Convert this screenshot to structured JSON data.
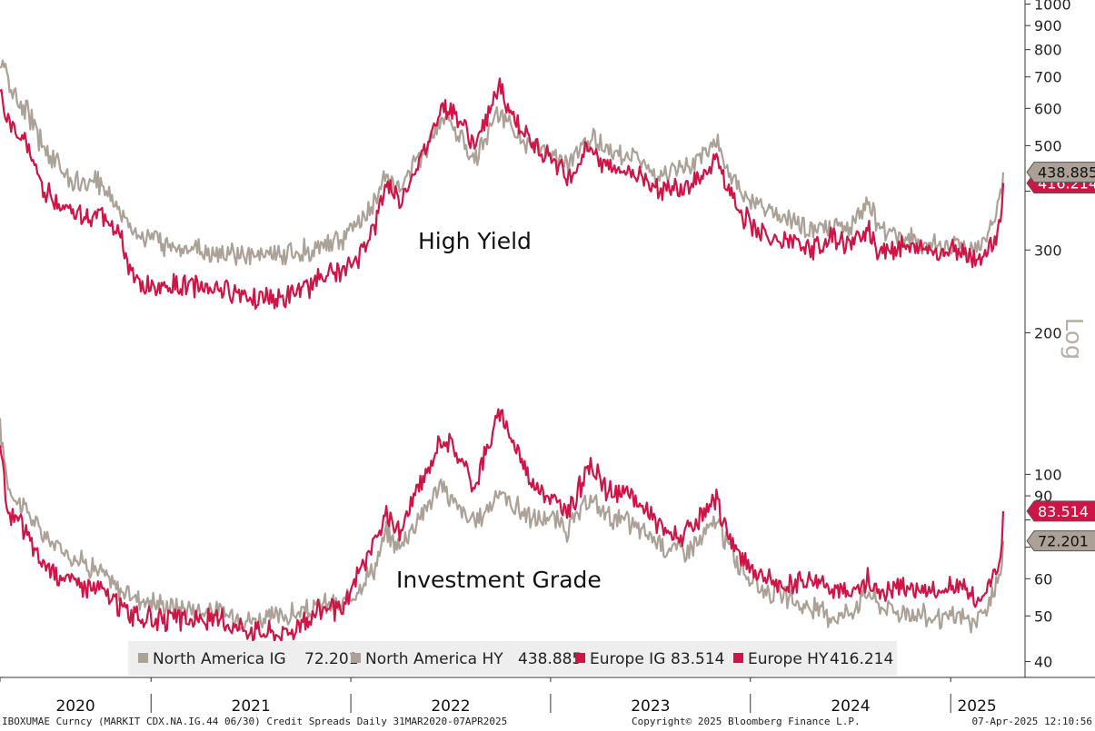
{
  "chart_data": {
    "type": "line",
    "y_scale": "log",
    "scale_label": "Log",
    "ylim": [
      37,
      1020
    ],
    "yticks": [
      40,
      50,
      60,
      70,
      80,
      90,
      100,
      200,
      300,
      400,
      500,
      600,
      700,
      800,
      900,
      1000
    ],
    "ytick_labels": [
      "40",
      "50",
      "60",
      "",
      "",
      "90",
      "100",
      "200",
      "300",
      "",
      "500",
      "600",
      "700",
      "800",
      "900",
      "1000"
    ],
    "x_start": "2020-03-31",
    "x_end": "2025-04-07",
    "year_labels": [
      {
        "label": "2020",
        "start": "2020-03-31",
        "end": "2021-01-01"
      },
      {
        "label": "2021",
        "start": "2021-01-01",
        "end": "2022-01-01"
      },
      {
        "label": "2022",
        "start": "2022-01-01",
        "end": "2023-01-01"
      },
      {
        "label": "2023",
        "start": "2023-01-01",
        "end": "2024-01-01"
      },
      {
        "label": "2024",
        "start": "2024-01-01",
        "end": "2025-01-01"
      },
      {
        "label": "2025",
        "start": "2025-01-01",
        "end": "2025-04-07"
      }
    ],
    "annotations": [
      "High Yield",
      "Investment Grade"
    ],
    "legend_position": "bottom-center",
    "series": [
      {
        "name": "North America IG",
        "last": "72.201",
        "color": "#aba197",
        "points": [
          [
            "2020-03-31",
            125
          ],
          [
            "2020-04-15",
            95
          ],
          [
            "2020-05-01",
            88
          ],
          [
            "2020-05-20",
            84
          ],
          [
            "2020-06-10",
            76
          ],
          [
            "2020-07-01",
            72
          ],
          [
            "2020-08-01",
            68
          ],
          [
            "2020-09-01",
            65
          ],
          [
            "2020-10-01",
            62
          ],
          [
            "2020-11-01",
            57
          ],
          [
            "2020-12-01",
            55
          ],
          [
            "2021-01-15",
            53
          ],
          [
            "2021-03-01",
            52
          ],
          [
            "2021-05-01",
            51
          ],
          [
            "2021-07-01",
            49
          ],
          [
            "2021-09-01",
            50
          ],
          [
            "2021-10-15",
            51
          ],
          [
            "2021-11-15",
            53
          ],
          [
            "2021-12-15",
            52
          ],
          [
            "2022-01-15",
            58
          ],
          [
            "2022-02-15",
            64
          ],
          [
            "2022-03-07",
            75
          ],
          [
            "2022-03-31",
            70
          ],
          [
            "2022-05-01",
            80
          ],
          [
            "2022-05-20",
            86
          ],
          [
            "2022-06-15",
            95
          ],
          [
            "2022-07-05",
            88
          ],
          [
            "2022-08-15",
            78
          ],
          [
            "2022-09-30",
            92
          ],
          [
            "2022-10-15",
            88
          ],
          [
            "2022-11-30",
            80
          ],
          [
            "2022-12-31",
            81
          ],
          [
            "2023-01-31",
            76
          ],
          [
            "2023-03-15",
            88
          ],
          [
            "2023-04-15",
            82
          ],
          [
            "2023-05-31",
            78
          ],
          [
            "2023-07-01",
            74
          ],
          [
            "2023-08-01",
            70
          ],
          [
            "2023-09-01",
            69
          ],
          [
            "2023-10-01",
            72
          ],
          [
            "2023-10-31",
            80
          ],
          [
            "2023-11-15",
            73
          ],
          [
            "2023-12-15",
            63
          ],
          [
            "2024-01-15",
            58
          ],
          [
            "2024-03-01",
            55
          ],
          [
            "2024-04-15",
            52
          ],
          [
            "2024-06-01",
            50
          ],
          [
            "2024-07-01",
            51
          ],
          [
            "2024-08-05",
            57
          ],
          [
            "2024-08-20",
            53
          ],
          [
            "2024-10-01",
            51
          ],
          [
            "2024-11-15",
            50
          ],
          [
            "2024-12-15",
            49
          ],
          [
            "2025-01-15",
            50
          ],
          [
            "2025-02-15",
            48
          ],
          [
            "2025-03-10",
            52
          ],
          [
            "2025-03-25",
            58
          ],
          [
            "2025-04-02",
            63
          ],
          [
            "2025-04-07",
            72.2
          ]
        ]
      },
      {
        "name": "North America HY",
        "last": "438.885",
        "color": "#aba197",
        "points": [
          [
            "2020-03-31",
            760
          ],
          [
            "2020-04-15",
            690
          ],
          [
            "2020-05-01",
            620
          ],
          [
            "2020-05-20",
            590
          ],
          [
            "2020-06-10",
            520
          ],
          [
            "2020-07-01",
            480
          ],
          [
            "2020-08-01",
            430
          ],
          [
            "2020-09-01",
            410
          ],
          [
            "2020-10-01",
            420
          ],
          [
            "2020-11-01",
            370
          ],
          [
            "2020-12-01",
            330
          ],
          [
            "2021-01-15",
            310
          ],
          [
            "2021-03-01",
            305
          ],
          [
            "2021-05-01",
            295
          ],
          [
            "2021-07-01",
            290
          ],
          [
            "2021-09-01",
            295
          ],
          [
            "2021-10-15",
            300
          ],
          [
            "2021-11-15",
            310
          ],
          [
            "2021-12-15",
            315
          ],
          [
            "2022-01-15",
            340
          ],
          [
            "2022-02-15",
            380
          ],
          [
            "2022-03-07",
            440
          ],
          [
            "2022-03-31",
            400
          ],
          [
            "2022-05-01",
            460
          ],
          [
            "2022-05-20",
            500
          ],
          [
            "2022-06-15",
            580
          ],
          [
            "2022-07-05",
            560
          ],
          [
            "2022-08-15",
            470
          ],
          [
            "2022-09-30",
            590
          ],
          [
            "2022-10-15",
            560
          ],
          [
            "2022-11-30",
            490
          ],
          [
            "2022-12-31",
            480
          ],
          [
            "2023-01-31",
            450
          ],
          [
            "2023-03-15",
            520
          ],
          [
            "2023-04-15",
            490
          ],
          [
            "2023-05-31",
            480
          ],
          [
            "2023-07-01",
            440
          ],
          [
            "2023-08-01",
            430
          ],
          [
            "2023-09-01",
            440
          ],
          [
            "2023-10-01",
            470
          ],
          [
            "2023-10-31",
            520
          ],
          [
            "2023-11-15",
            460
          ],
          [
            "2023-12-15",
            390
          ],
          [
            "2024-01-15",
            370
          ],
          [
            "2024-03-01",
            350
          ],
          [
            "2024-04-15",
            330
          ],
          [
            "2024-06-01",
            335
          ],
          [
            "2024-07-01",
            330
          ],
          [
            "2024-08-05",
            380
          ],
          [
            "2024-08-20",
            340
          ],
          [
            "2024-10-01",
            320
          ],
          [
            "2024-11-15",
            310
          ],
          [
            "2024-12-15",
            305
          ],
          [
            "2025-01-15",
            310
          ],
          [
            "2025-02-15",
            295
          ],
          [
            "2025-03-10",
            325
          ],
          [
            "2025-03-25",
            350
          ],
          [
            "2025-04-02",
            390
          ],
          [
            "2025-04-07",
            438.9
          ]
        ]
      },
      {
        "name": "Europe IG",
        "last": "83.514",
        "color": "#cf1446",
        "points": [
          [
            "2020-03-31",
            115
          ],
          [
            "2020-04-15",
            82
          ],
          [
            "2020-05-01",
            80
          ],
          [
            "2020-05-20",
            75
          ],
          [
            "2020-06-10",
            66
          ],
          [
            "2020-07-01",
            63
          ],
          [
            "2020-08-01",
            60
          ],
          [
            "2020-09-01",
            58
          ],
          [
            "2020-10-01",
            57
          ],
          [
            "2020-11-01",
            53
          ],
          [
            "2020-12-01",
            50
          ],
          [
            "2021-01-15",
            49
          ],
          [
            "2021-03-01",
            49
          ],
          [
            "2021-05-01",
            49
          ],
          [
            "2021-07-01",
            47
          ],
          [
            "2021-09-01",
            46
          ],
          [
            "2021-10-15",
            49
          ],
          [
            "2021-11-15",
            53
          ],
          [
            "2021-12-15",
            50
          ],
          [
            "2022-01-15",
            62
          ],
          [
            "2022-02-15",
            72
          ],
          [
            "2022-03-07",
            82
          ],
          [
            "2022-03-31",
            75
          ],
          [
            "2022-05-01",
            92
          ],
          [
            "2022-05-20",
            100
          ],
          [
            "2022-06-15",
            120
          ],
          [
            "2022-07-05",
            115
          ],
          [
            "2022-08-15",
            95
          ],
          [
            "2022-09-30",
            135
          ],
          [
            "2022-10-15",
            125
          ],
          [
            "2022-11-30",
            95
          ],
          [
            "2022-12-31",
            90
          ],
          [
            "2023-01-31",
            82
          ],
          [
            "2023-03-15",
            105
          ],
          [
            "2023-04-15",
            92
          ],
          [
            "2023-05-31",
            90
          ],
          [
            "2023-07-01",
            82
          ],
          [
            "2023-08-01",
            75
          ],
          [
            "2023-09-01",
            74
          ],
          [
            "2023-10-01",
            80
          ],
          [
            "2023-10-31",
            88
          ],
          [
            "2023-11-15",
            78
          ],
          [
            "2023-12-15",
            66
          ],
          [
            "2024-01-15",
            62
          ],
          [
            "2024-03-01",
            57
          ],
          [
            "2024-04-15",
            60
          ],
          [
            "2024-06-01",
            58
          ],
          [
            "2024-07-01",
            55
          ],
          [
            "2024-08-05",
            60
          ],
          [
            "2024-08-20",
            56
          ],
          [
            "2024-10-01",
            58
          ],
          [
            "2024-11-15",
            57
          ],
          [
            "2024-12-15",
            56
          ],
          [
            "2025-01-15",
            58
          ],
          [
            "2025-02-15",
            54
          ],
          [
            "2025-03-10",
            58
          ],
          [
            "2025-03-25",
            62
          ],
          [
            "2025-04-02",
            66
          ],
          [
            "2025-04-07",
            83.5
          ]
        ]
      },
      {
        "name": "Europe HY",
        "last": "416.214",
        "color": "#cf1446",
        "points": [
          [
            "2020-03-31",
            650
          ],
          [
            "2020-04-15",
            560
          ],
          [
            "2020-05-01",
            530
          ],
          [
            "2020-05-20",
            500
          ],
          [
            "2020-06-10",
            420
          ],
          [
            "2020-07-01",
            390
          ],
          [
            "2020-08-01",
            370
          ],
          [
            "2020-09-01",
            350
          ],
          [
            "2020-10-01",
            360
          ],
          [
            "2020-11-01",
            330
          ],
          [
            "2020-12-01",
            255
          ],
          [
            "2021-01-15",
            250
          ],
          [
            "2021-03-01",
            252
          ],
          [
            "2021-05-01",
            250
          ],
          [
            "2021-07-01",
            240
          ],
          [
            "2021-09-01",
            235
          ],
          [
            "2021-10-15",
            250
          ],
          [
            "2021-11-15",
            270
          ],
          [
            "2021-12-15",
            265
          ],
          [
            "2022-01-15",
            290
          ],
          [
            "2022-02-15",
            340
          ],
          [
            "2022-03-07",
            420
          ],
          [
            "2022-03-31",
            380
          ],
          [
            "2022-05-01",
            450
          ],
          [
            "2022-05-20",
            500
          ],
          [
            "2022-06-15",
            610
          ],
          [
            "2022-07-05",
            600
          ],
          [
            "2022-08-15",
            500
          ],
          [
            "2022-09-30",
            660
          ],
          [
            "2022-10-15",
            600
          ],
          [
            "2022-11-30",
            500
          ],
          [
            "2022-12-31",
            480
          ],
          [
            "2023-01-31",
            420
          ],
          [
            "2023-03-15",
            500
          ],
          [
            "2023-04-15",
            450
          ],
          [
            "2023-05-31",
            440
          ],
          [
            "2023-07-01",
            420
          ],
          [
            "2023-08-01",
            400
          ],
          [
            "2023-09-01",
            410
          ],
          [
            "2023-10-01",
            430
          ],
          [
            "2023-10-31",
            470
          ],
          [
            "2023-11-15",
            420
          ],
          [
            "2023-12-15",
            360
          ],
          [
            "2024-01-15",
            330
          ],
          [
            "2024-03-01",
            310
          ],
          [
            "2024-04-15",
            300
          ],
          [
            "2024-06-01",
            320
          ],
          [
            "2024-07-01",
            305
          ],
          [
            "2024-08-05",
            335
          ],
          [
            "2024-08-20",
            300
          ],
          [
            "2024-10-01",
            305
          ],
          [
            "2024-11-15",
            300
          ],
          [
            "2024-12-15",
            295
          ],
          [
            "2025-01-15",
            300
          ],
          [
            "2025-02-15",
            285
          ],
          [
            "2025-03-10",
            300
          ],
          [
            "2025-03-25",
            320
          ],
          [
            "2025-04-02",
            350
          ],
          [
            "2025-04-07",
            416.2
          ]
        ]
      }
    ]
  },
  "legend_colors": {
    "na_ig": "#aba197",
    "na_hy": "#aba197",
    "eu_ig": "#cf1446",
    "eu_hy": "#cf1446"
  },
  "footer": {
    "left": "IBOXUMAE Curncy (MARKIT CDX.NA.IG.44 06/30) Credit Spreads  Daily 31MAR2020-07APR2025",
    "center": "Copyright© 2025 Bloomberg Finance L.P.",
    "right": "07-Apr-2025 12:10:56"
  }
}
